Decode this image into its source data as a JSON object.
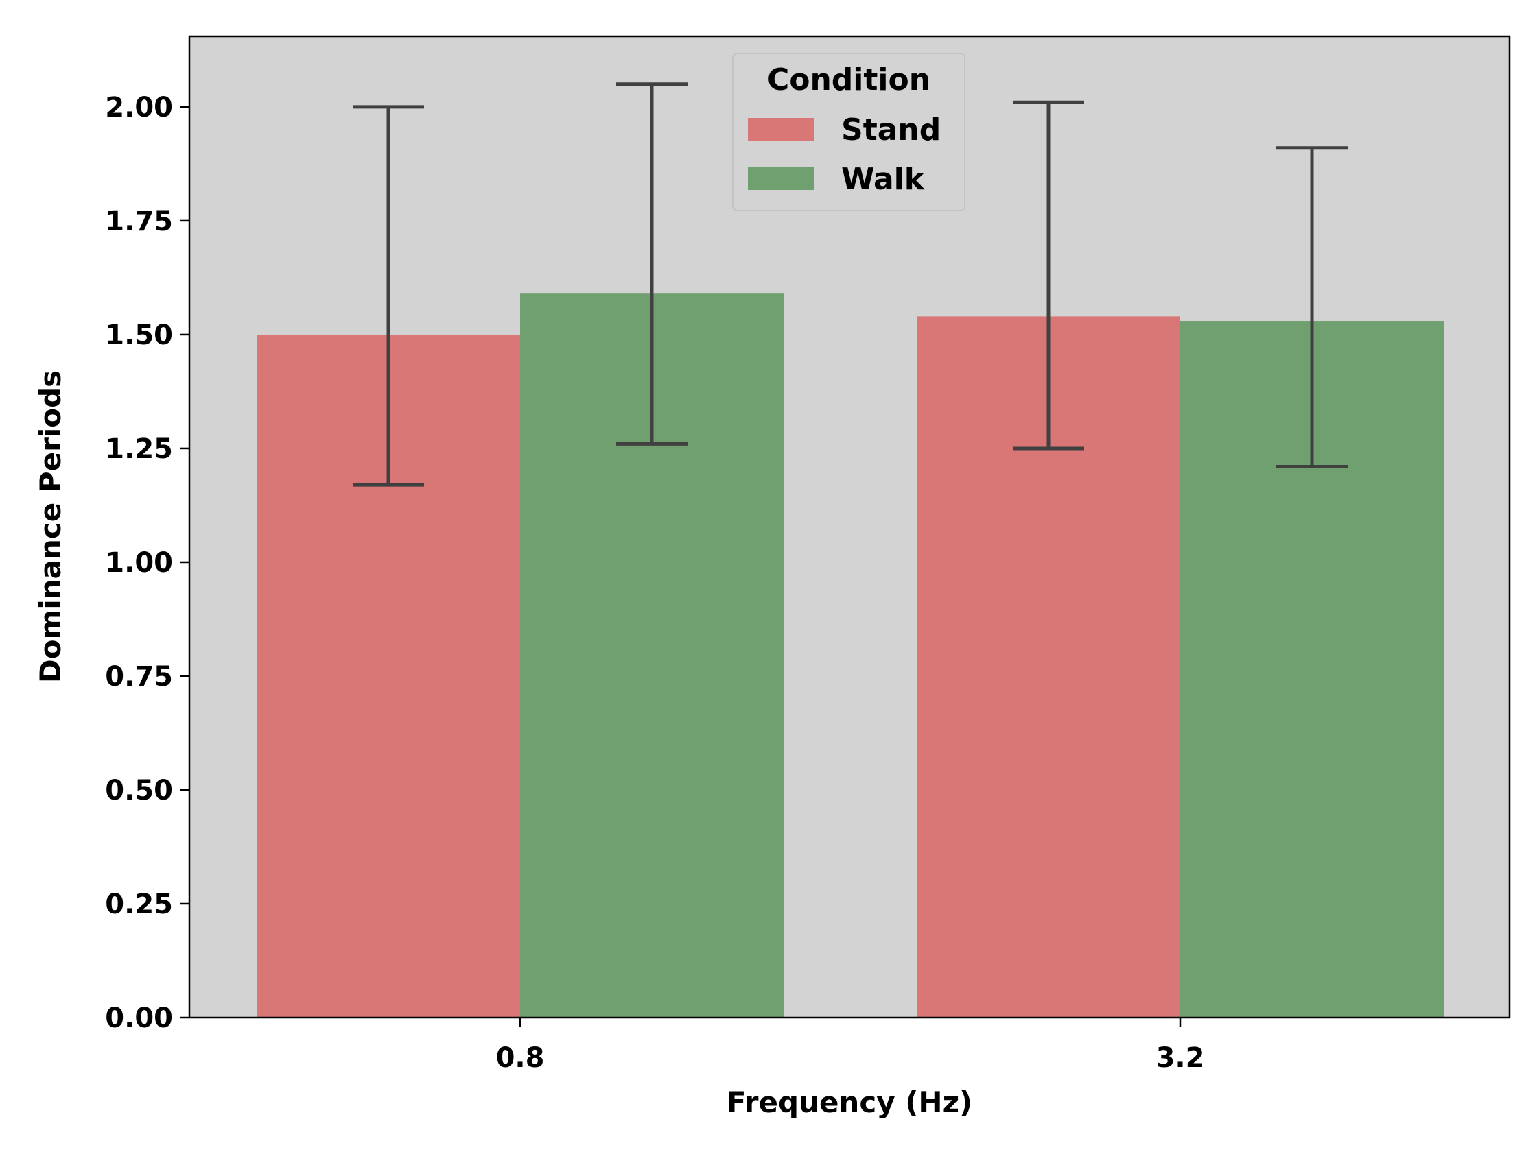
{
  "chart_data": {
    "type": "bar",
    "title": "",
    "xlabel": "Frequency (Hz)",
    "ylabel": "Dominance Periods",
    "categories": [
      "0.8",
      "3.2"
    ],
    "series": [
      {
        "name": "Stand",
        "color": "#d97777",
        "values": [
          1.5,
          1.54
        ],
        "error_low": [
          1.17,
          1.25
        ],
        "error_high": [
          2.0,
          2.01
        ]
      },
      {
        "name": "Walk",
        "color": "#70a070",
        "values": [
          1.59,
          1.53
        ],
        "error_low": [
          1.26,
          1.21
        ],
        "error_high": [
          2.05,
          1.91
        ]
      }
    ],
    "ylim": [
      0,
      2.155
    ],
    "yticks": [
      "0.00",
      "0.25",
      "0.50",
      "0.75",
      "1.00",
      "1.25",
      "1.50",
      "1.75",
      "2.00"
    ],
    "legend": {
      "title": "Condition",
      "placement": "upper center"
    },
    "grid": false,
    "plot_background": "#d3d3d3",
    "error_bar_color": "#404040"
  }
}
